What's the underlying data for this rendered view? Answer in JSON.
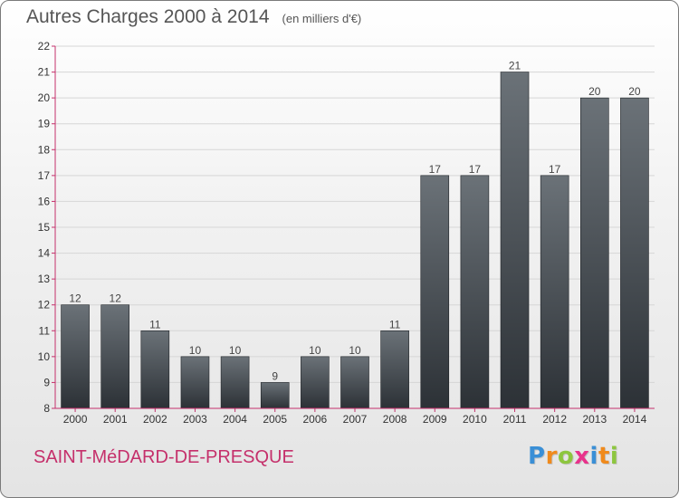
{
  "title": "Autres Charges 2000 à 2014",
  "subtitle": "(en milliers d'€)",
  "commune": "SAINT-MéDARD-DE-PRESQUE",
  "logo": {
    "letters": [
      "P",
      "r",
      "o",
      "x",
      "i",
      "t",
      "i"
    ],
    "colors": [
      "#3a8fd6",
      "#f08a1c",
      "#8dc63f",
      "#e8338b",
      "#3a8fd6",
      "#f08a1c",
      "#8dc63f"
    ]
  },
  "colors": {
    "bar_top": "#6b7278",
    "bar_bottom": "#2c3136",
    "axis": "#c5306b",
    "grid": "#d6d6d6"
  },
  "chart_data": {
    "type": "bar",
    "title": "Autres Charges 2000 à 2014",
    "subtitle": "(en milliers d'€)",
    "categories": [
      "2000",
      "2001",
      "2002",
      "2003",
      "2004",
      "2005",
      "2006",
      "2007",
      "2008",
      "2009",
      "2010",
      "2011",
      "2012",
      "2013",
      "2014"
    ],
    "values": [
      12,
      12,
      11,
      10,
      10,
      9,
      10,
      10,
      11,
      17,
      17,
      21,
      17,
      20,
      20
    ],
    "ylim": [
      8,
      22
    ],
    "yticks": [
      8,
      9,
      10,
      11,
      12,
      13,
      14,
      15,
      16,
      17,
      18,
      19,
      20,
      21,
      22
    ],
    "grid": true,
    "data_labels": true
  }
}
